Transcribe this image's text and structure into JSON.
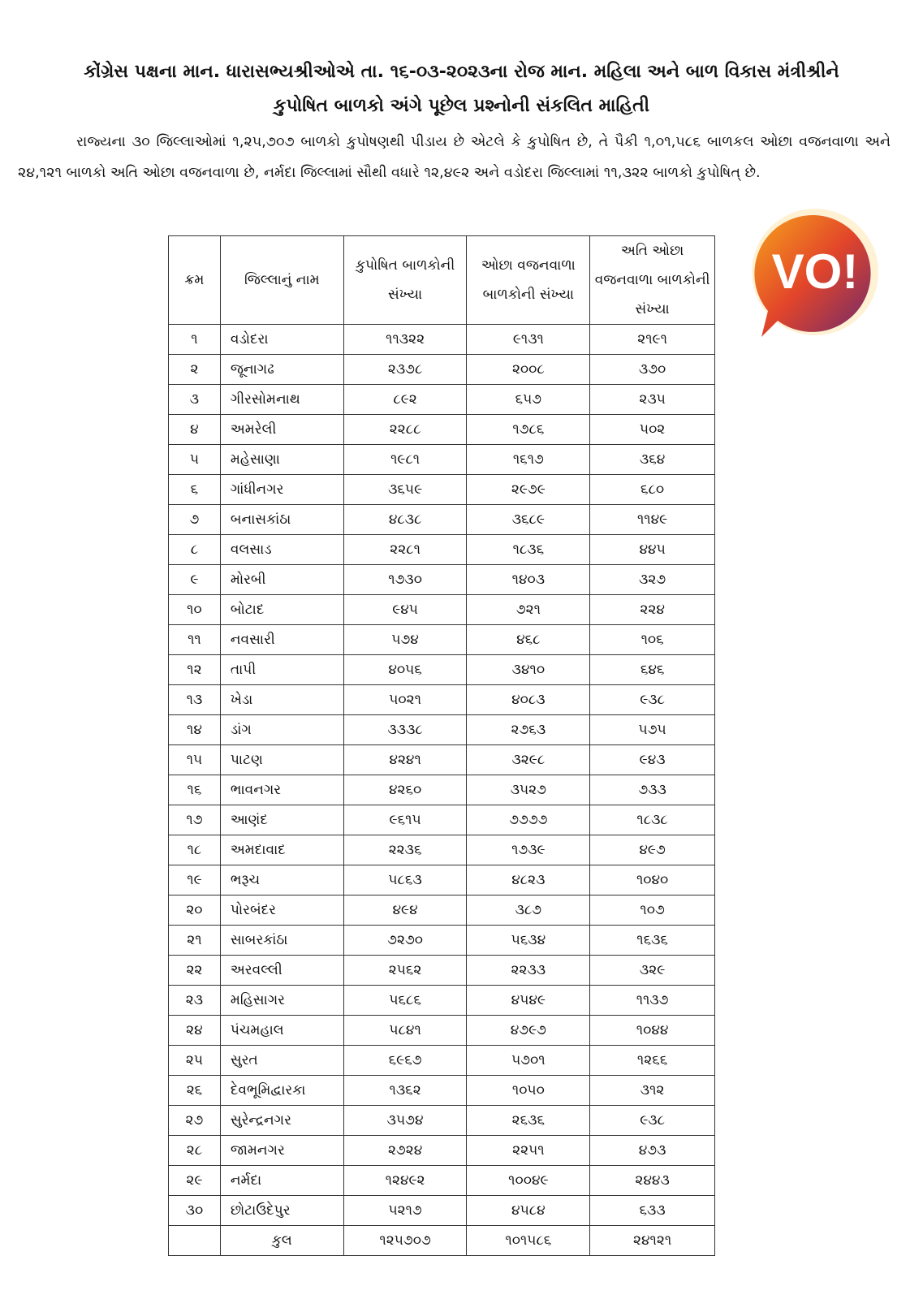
{
  "title_line1": "કોંગ્રેસ પક્ષના માન. ધારાસભ્યશ્રીઓએ તા. ૧૬-૦૩-૨૦૨૩ના રોજ માન. મહિલા અને બાળ વિકાસ મંત્રીશ્રીને",
  "title_line2": "કુપોષિત બાળકો અંગે પૂછેલ પ્રશ્નોની સંકલિત માહિતી",
  "paragraph": "રાજ્યના ૩૦ જિલ્લાઓમાં ૧,૨૫,૭૦૭ બાળકો કુપોષણથી પીડાય છે એટલે કે કુપોષિત છે, તે પૈકી ૧,૦૧,૫૮૬ બાળકલ ઓછા વજનવાળા અને ૨૪,૧૨૧ બાળકો અતિ ઓછા વજનવાળા છે,  નર્મદા જિલ્લામાં સૌથી વધારે ૧૨,૪૯૨ અને વડોદરા જિલ્લામાં ૧૧,૩૨૨ બાળકો કુપોષિત્ છે.",
  "logo": {
    "text": "VO!",
    "colors": [
      "#f7a21b",
      "#e2452a",
      "#6b2a6e"
    ]
  },
  "table": {
    "headers": [
      "ક્રમ",
      "જિલ્લાનું નામ",
      "કુપોષિત બાળકોની સંખ્યા",
      "ઓછા વજનવાળા બાળકોની સંખ્યા",
      "અતિ ઓછા વજનવાળા બાળકોની સંખ્યા"
    ],
    "rows": [
      [
        "૧",
        "વડોદરા",
        "૧૧૩૨૨",
        "૯૧૩૧",
        "૨૧૯૧"
      ],
      [
        "૨",
        "જૂનાગઢ",
        "૨૩૭૮",
        "૨૦૦૮",
        "૩૭૦"
      ],
      [
        "૩",
        "ગીરસોમનાથ",
        "૮૯૨",
        "૬૫૭",
        "૨૩૫"
      ],
      [
        "૪",
        "અમરેલી",
        "૨૨૮૮",
        "૧૭૮૬",
        "૫૦૨"
      ],
      [
        "૫",
        "મહેસાણા",
        "૧૯૮૧",
        "૧૬૧૭",
        "૩૬૪"
      ],
      [
        "૬",
        "ગાંધીનગર",
        "૩૬૫૯",
        "૨૯૭૯",
        "૬૮૦"
      ],
      [
        "૭",
        "બનાસકાંઠા",
        "૪૮૩૮",
        "૩૬૮૯",
        "૧૧૪૯"
      ],
      [
        "૮",
        "વલસાડ",
        "૨૨૮૧",
        "૧૮૩૬",
        "૪૪૫"
      ],
      [
        "૯",
        "મોરબી",
        "૧૭૩૦",
        "૧૪૦૩",
        "૩૨૭"
      ],
      [
        "૧૦",
        "બોટાદ",
        "૯૪૫",
        "૭૨૧",
        "૨૨૪"
      ],
      [
        "૧૧",
        "નવસારી",
        "૫૭૪",
        "૪૬૮",
        "૧૦૬"
      ],
      [
        "૧૨",
        "તાપી",
        "૪૦૫૬",
        "૩૪૧૦",
        "૬૪૬"
      ],
      [
        "૧૩",
        "ખેડા",
        "૫૦૨૧",
        "૪૦૮૩",
        "૯૩૮"
      ],
      [
        "૧૪",
        "ડાંગ",
        "૩૩૩૮",
        "૨૭૬૩",
        "૫૭૫"
      ],
      [
        "૧૫",
        "પાટણ",
        "૪૨૪૧",
        "૩૨૯૮",
        "૯૪૩"
      ],
      [
        "૧૬",
        "ભાવનગર",
        "૪૨૬૦",
        "૩૫૨૭",
        "૭૩૩"
      ],
      [
        "૧૭",
        "આણંદ",
        "૯૬૧૫",
        "૭૭૭૭",
        "૧૮૩૮"
      ],
      [
        "૧૮",
        "અમદાવાદ",
        "૨૨૩૬",
        "૧૭૩૯",
        "૪૯૭"
      ],
      [
        "૧૯",
        "ભરૂચ",
        "૫૮૬૩",
        "૪૮૨૩",
        "૧૦૪૦"
      ],
      [
        "૨૦",
        "પોરબંદર",
        "૪૯૪",
        "૩૮૭",
        "૧૦૭"
      ],
      [
        "૨૧",
        "સાબરકાંઠા",
        "૭૨૭૦",
        "૫૬૩૪",
        "૧૬૩૬"
      ],
      [
        "૨૨",
        "અરવલ્લી",
        "૨૫૬૨",
        "૨૨૩૩",
        "૩૨૯"
      ],
      [
        "૨૩",
        "મહિસાગર",
        "૫૬૮૬",
        "૪૫૪૯",
        "૧૧૩૭"
      ],
      [
        "૨૪",
        "પંચમહાલ",
        "૫૮૪૧",
        "૪૭૯૭",
        "૧૦૪૪"
      ],
      [
        "૨૫",
        "સુરત",
        "૬૯૬૭",
        "૫૭૦૧",
        "૧૨૬૬"
      ],
      [
        "૨૬",
        "દેવભૂમિદ્વારકા",
        "૧૩૬૨",
        "૧૦૫૦",
        "૩૧૨"
      ],
      [
        "૨૭",
        "સુરેન્દ્રનગર",
        "૩૫૭૪",
        "૨૬૩૬",
        "૯૩૮"
      ],
      [
        "૨૮",
        "જામનગર",
        "૨૭૨૪",
        "૨૨૫૧",
        "૪૭૩"
      ],
      [
        "૨૯",
        "નર્મદા",
        "૧૨૪૯૨",
        "૧૦૦૪૯",
        "૨૪૪૩"
      ],
      [
        "૩૦",
        "છોટાઉદેપુર",
        "૫૨૧૭",
        "૪૫૮૪",
        "૬૩૩"
      ]
    ],
    "total": [
      "",
      "કુલ",
      "૧૨૫૭૦૭",
      "૧૦૧૫૮૬",
      "૨૪૧૨૧"
    ]
  }
}
